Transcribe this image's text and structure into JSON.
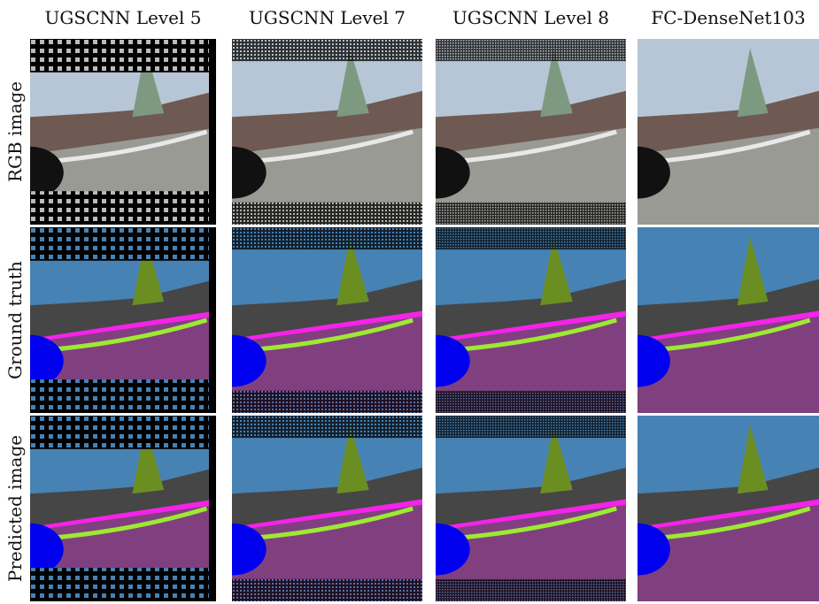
{
  "columns": [
    {
      "label": "UGSCNN Level 5"
    },
    {
      "label": "UGSCNN Level 7"
    },
    {
      "label": "UGSCNN Level 8"
    },
    {
      "label": "FC-DenseNet103"
    }
  ],
  "rows": [
    {
      "label": "RGB image"
    },
    {
      "label": "Ground truth"
    },
    {
      "label": "Predicted image"
    }
  ],
  "colors": {
    "sky_photo": "#b7c6d6",
    "road_photo": "#9a9a94",
    "sky_label": "#4682b4",
    "road_label": "#804080",
    "building_label": "#464646",
    "vegetation_label": "#6b8e23",
    "lane_marking_label": "#9dea32",
    "sidewalk_label": "#f423e8",
    "car_label": "#0000ee"
  }
}
